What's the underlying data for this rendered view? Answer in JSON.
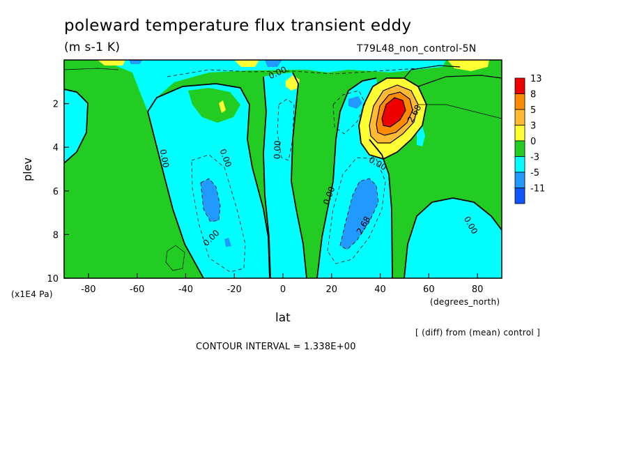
{
  "chart_data": {
    "type": "heatmap",
    "subtype": "filled-contour",
    "title": "poleward temperature flux transient eddy",
    "units": "(m s-1 K)",
    "run_label": "T79L48_non_control-5N",
    "xlabel": "lat",
    "x_unit": "(degrees_north)",
    "ylabel": "plev",
    "y_unit": "(x1E4 Pa)",
    "xlim": [
      -90,
      90
    ],
    "ylim": [
      10,
      0
    ],
    "x_ticks": [
      -80,
      -60,
      -40,
      -20,
      0,
      20,
      40,
      60,
      80
    ],
    "y_ticks": [
      2,
      4,
      6,
      8,
      10
    ],
    "note": "[ (diff) from (mean) control ]",
    "contour_interval": "CONTOUR INTERVAL = 1.338E+00",
    "contour_labels": [
      "0.00",
      "0.00",
      "0.00",
      "0.00",
      "0.00",
      "0.00",
      "0.00",
      "0.00",
      "2.68",
      "2.68"
    ],
    "colorbar": {
      "labels": [
        "13",
        "8",
        "5",
        "3",
        "0",
        "-3",
        "-5",
        "-11"
      ],
      "colors": [
        "#ee0000",
        "#ff8c00",
        "#ffbb33",
        "#ffff33",
        "#22cc22",
        "#00ffff",
        "#2299ff",
        "#1155ff"
      ]
    },
    "regions": [
      {
        "name": "positive-maximum",
        "lat": 45,
        "plev": 2.3,
        "value_range": [
          8,
          13
        ]
      },
      {
        "name": "negative-core-south",
        "lat": -28,
        "plev": 6.5,
        "value_range": [
          -5,
          -3
        ]
      },
      {
        "name": "negative-core-north",
        "lat": 32,
        "plev": 7.2,
        "value_range": [
          -5,
          -3
        ]
      }
    ]
  }
}
